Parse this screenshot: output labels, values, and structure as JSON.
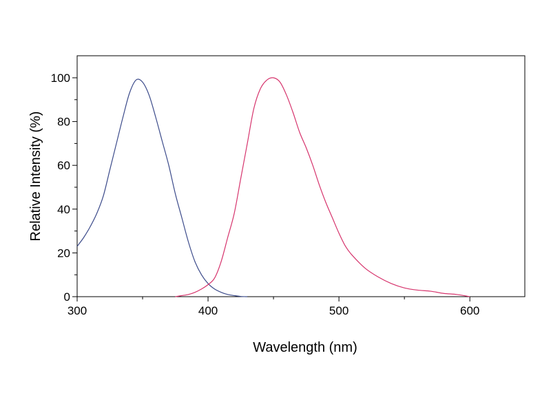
{
  "chart_data": {
    "type": "line",
    "title": "",
    "xlabel": "Wavelength (nm)",
    "ylabel": "Relative Intensity (%)",
    "xlim": [
      300,
      642
    ],
    "ylim": [
      0,
      100
    ],
    "x_ticks": [
      300,
      400,
      500,
      600
    ],
    "x_tick_labels": [
      "300",
      "400",
      "500",
      "600"
    ],
    "x_minor_ticks": [
      350,
      450,
      550
    ],
    "y_ticks": [
      0,
      20,
      40,
      60,
      80,
      100
    ],
    "y_tick_labels": [
      "0",
      "20",
      "40",
      "60",
      "80",
      "100"
    ],
    "y_minor_ticks": [
      10,
      30,
      50,
      70,
      90
    ],
    "grid": false,
    "legend": "none",
    "series": [
      {
        "color": "#3b4a8a",
        "x": [
          300,
          305,
          310,
          315,
          320,
          325,
          330,
          335,
          340,
          345,
          350,
          355,
          360,
          365,
          370,
          375,
          380,
          385,
          390,
          395,
          400,
          405,
          410,
          415,
          420,
          425,
          430
        ],
        "y": [
          23,
          27,
          32,
          38,
          46,
          58,
          70,
          82,
          93,
          99,
          98,
          92,
          82,
          71,
          60,
          47,
          36,
          25,
          16,
          10,
          6,
          3.5,
          2,
          1,
          0.5,
          0.1,
          0
        ]
      },
      {
        "color": "#d6336c",
        "x": [
          375,
          380,
          385,
          390,
          395,
          400,
          405,
          410,
          415,
          420,
          425,
          430,
          435,
          440,
          445,
          450,
          455,
          460,
          465,
          470,
          475,
          480,
          485,
          490,
          495,
          500,
          505,
          510,
          520,
          530,
          540,
          550,
          560,
          570,
          580,
          590,
          600
        ],
        "y": [
          0,
          0.5,
          1,
          2,
          3.5,
          5.5,
          8.5,
          16,
          27,
          38,
          54,
          70,
          86,
          95,
          99,
          100,
          98,
          92,
          84,
          75,
          68,
          60,
          51,
          43,
          36,
          29,
          23,
          19,
          13,
          9,
          6,
          4,
          3,
          2.5,
          1.5,
          1,
          0
        ]
      }
    ]
  }
}
